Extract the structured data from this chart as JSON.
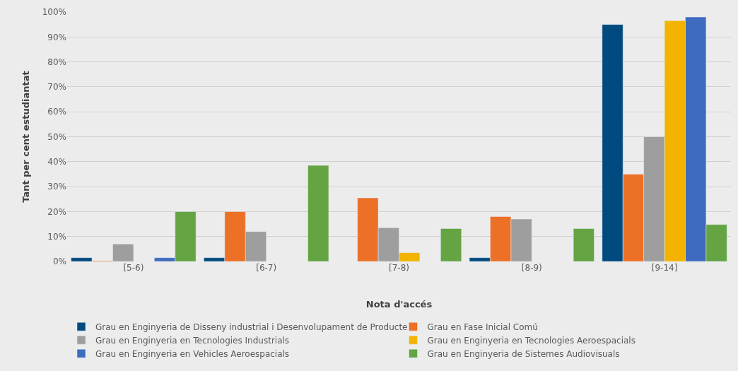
{
  "chart_data": {
    "type": "bar",
    "xlabel": "Nota d'accés",
    "ylabel": "Tant per cent estudiantat",
    "categories": [
      "[5-6)",
      "[6-7)",
      "[7-8)",
      "[8-9)",
      "[9-14]"
    ],
    "series": [
      {
        "name": "Grau en Enginyeria de Disseny industrial i Desenvolupament de Producte",
        "color": "#004a7f",
        "values": [
          1.5,
          1.5,
          null,
          1.5,
          95
        ]
      },
      {
        "name": "Grau en Fase Inicial Comú",
        "color": "#ec7026",
        "values": [
          0.3,
          20,
          25.5,
          18,
          35
        ]
      },
      {
        "name": "Grau en Enginyeria en Tecnologies Industrials",
        "color": "#9e9e9e",
        "values": [
          7,
          12,
          13.5,
          17,
          50
        ]
      },
      {
        "name": "Grau en Enginyeria en Tecnologies Aeroespacials",
        "color": "#f2b400",
        "values": [
          null,
          null,
          3.5,
          null,
          96.5
        ]
      },
      {
        "name": "Grau en Enginyeria en Vehicles Aeroespacials",
        "color": "#3f6bbf",
        "values": [
          1.5,
          null,
          null,
          null,
          98
        ]
      },
      {
        "name": "Grau en Enginyeria de Sistemes Audiovisuals",
        "color": "#65a443",
        "values": [
          20,
          38.5,
          13.2,
          13.2,
          14.8
        ]
      }
    ],
    "ylim": [
      0,
      100
    ],
    "yticks": [
      {
        "value": 0,
        "label": "0%"
      },
      {
        "value": 10,
        "label": "10%"
      },
      {
        "value": 20,
        "label": "20%"
      },
      {
        "value": 30,
        "label": "30%"
      },
      {
        "value": 40,
        "label": "40%"
      },
      {
        "value": 50,
        "label": "50%"
      },
      {
        "value": 60,
        "label": "60%"
      },
      {
        "value": 70,
        "label": "70%"
      },
      {
        "value": 80,
        "label": "80%"
      },
      {
        "value": 90,
        "label": "90%"
      },
      {
        "value": 100,
        "label": "100%"
      }
    ],
    "grid": "y",
    "legend": "bottom"
  }
}
